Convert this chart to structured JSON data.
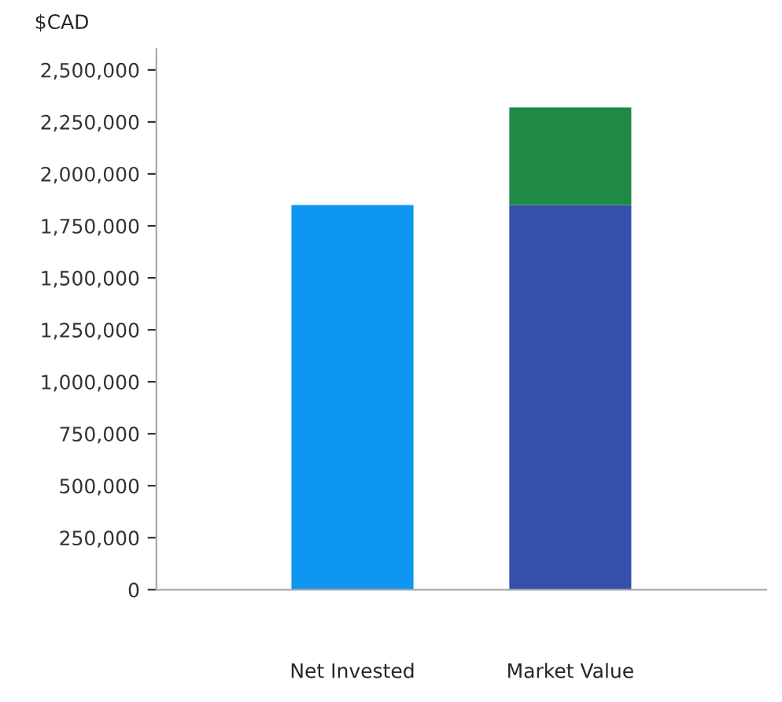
{
  "chart_data": {
    "type": "bar",
    "stacked": true,
    "ylabel": "$CAD",
    "categories": [
      "Net Invested",
      "Market Value"
    ],
    "series": [
      {
        "colors": [
          "#0f96f0",
          "#3450a8"
        ],
        "values": [
          1850000,
          1850000
        ]
      },
      {
        "color": "#1e8a45",
        "values": [
          null,
          470000
        ]
      }
    ],
    "ylim": [
      0,
      2600000
    ],
    "yticks": [
      {
        "value": 0,
        "label": "0"
      },
      {
        "value": 250000,
        "label": "250,000"
      },
      {
        "value": 500000,
        "label": "500,000"
      },
      {
        "value": 750000,
        "label": "750,000"
      },
      {
        "value": 1000000,
        "label": "1,000,000"
      },
      {
        "value": 1250000,
        "label": "1,250,000"
      },
      {
        "value": 1500000,
        "label": "1,500,000"
      },
      {
        "value": 1750000,
        "label": "1,750,000"
      },
      {
        "value": 2000000,
        "label": "2,000,000"
      },
      {
        "value": 2250000,
        "label": "2,250,000"
      },
      {
        "value": 2500000,
        "label": "2,500,000"
      }
    ],
    "grid": false
  }
}
